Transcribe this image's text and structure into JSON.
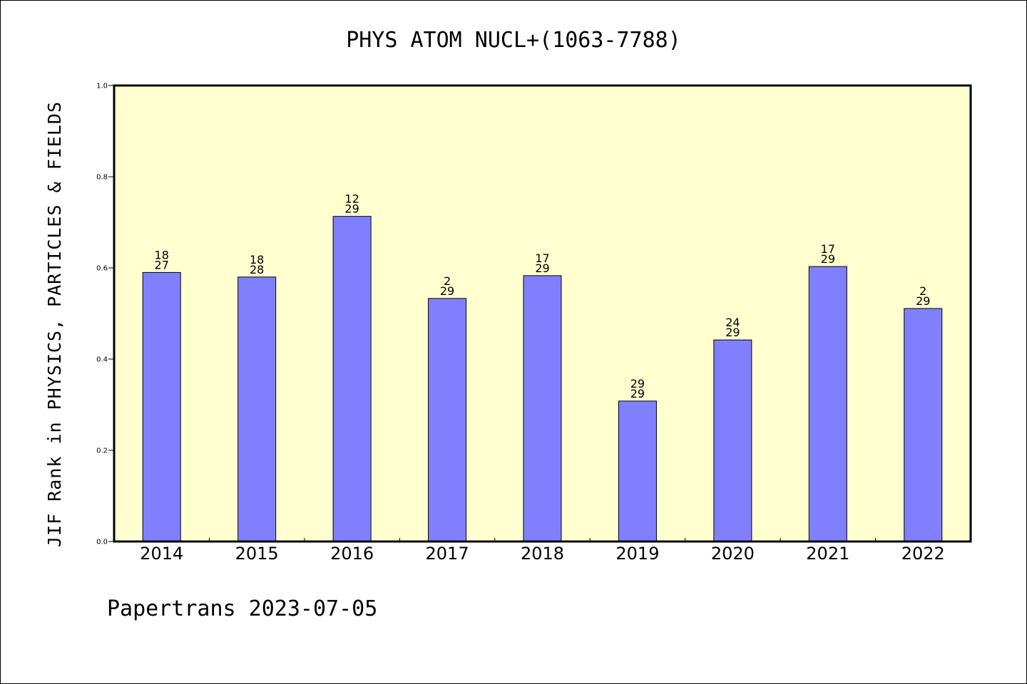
{
  "chart_data": {
    "type": "bar",
    "title": "PHYS ATOM NUCL+(1063-7788)",
    "ylabel": "JIF Rank in PHYSICS, PARTICLES & FIELDS",
    "xlabel": "",
    "categories": [
      "2014",
      "2015",
      "2016",
      "2017",
      "2018",
      "2019",
      "2020",
      "2021",
      "2022"
    ],
    "values": [
      0.59,
      0.58,
      0.713,
      0.533,
      0.583,
      0.308,
      0.442,
      0.603,
      0.511
    ],
    "data_labels": [
      [
        "18",
        "27"
      ],
      [
        "18",
        "28"
      ],
      [
        "12",
        "29"
      ],
      [
        "2",
        "29"
      ],
      [
        "17",
        "29"
      ],
      [
        "29",
        "29"
      ],
      [
        "24",
        "29"
      ],
      [
        "17",
        "29"
      ],
      [
        "2",
        "29"
      ]
    ],
    "ylim": [
      0,
      1.0
    ],
    "yticks": [
      "0.0",
      "0.2",
      "0.4",
      "0.6",
      "0.8",
      "1.0"
    ],
    "grid": false,
    "legend": "none",
    "colors": {
      "bar": "#8080ff",
      "plot_bg": "#ffffd0",
      "axis": "#000000"
    }
  },
  "footer": {
    "text": "Papertrans 2023-07-05"
  }
}
